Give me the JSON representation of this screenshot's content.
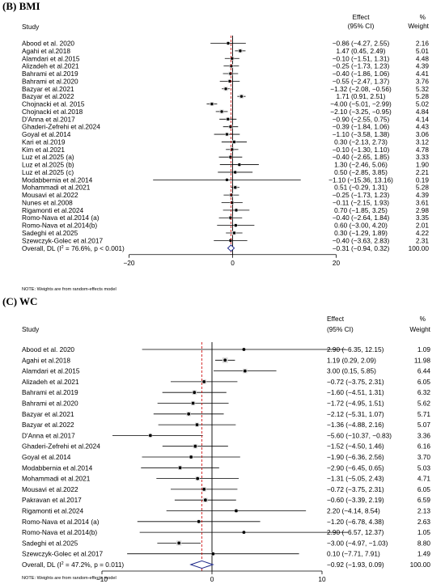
{
  "chart_data": [
    {
      "type": "forest",
      "panel_title": "(B) BMI",
      "header": {
        "study": "Study",
        "effect": "Effect",
        "ci": "(95% CI)",
        "pct": "%",
        "weight": "Weight"
      },
      "xticks": [
        -20,
        0,
        20
      ],
      "xlim": [
        -22,
        24
      ],
      "note": "NOTE: Weights are from random-effects model",
      "studies": [
        {
          "name": "Abood et al. 2020",
          "est": -0.86,
          "lo": -4.27,
          "hi": 2.55,
          "ci_text": "−0.86 (−4.27, 2.55)",
          "weight": "2.16"
        },
        {
          "name": "Agahi et al.2018",
          "est": 1.47,
          "lo": 0.45,
          "hi": 2.49,
          "ci_text": "1.47 (0.45, 2.49)",
          "weight": "5.01"
        },
        {
          "name": "Alamdari et al.2015",
          "est": -0.1,
          "lo": -1.51,
          "hi": 1.31,
          "ci_text": "−0.10 (−1.51, 1.31)",
          "weight": "4.48"
        },
        {
          "name": "Alizadeh et al.2021",
          "est": -0.25,
          "lo": -1.73,
          "hi": 1.23,
          "ci_text": "−0.25 (−1.73, 1.23)",
          "weight": "4.39"
        },
        {
          "name": "Bahrami et al.2019",
          "est": -0.4,
          "lo": -1.86,
          "hi": 1.06,
          "ci_text": "−0.40 (−1.86, 1.06)",
          "weight": "4.41"
        },
        {
          "name": "Bahrami et al.2020",
          "est": -0.55,
          "lo": -2.47,
          "hi": 1.37,
          "ci_text": "−0.55 (−2.47, 1.37)",
          "weight": "3.76"
        },
        {
          "name": "Bazyar et al.2021",
          "est": -1.32,
          "lo": -2.08,
          "hi": -0.56,
          "ci_text": "−1.32 (−2.08, −0.56)",
          "weight": "5.32"
        },
        {
          "name": "Bazyar et al.2022",
          "est": 1.71,
          "lo": 0.91,
          "hi": 2.51,
          "ci_text": "1.71 (0.91, 2.51)",
          "weight": "5.28"
        },
        {
          "name": "Chojnacki et al. 2015",
          "est": -4.0,
          "lo": -5.01,
          "hi": -2.99,
          "ci_text": "−4.00 (−5.01, −2.99)",
          "weight": "5.02"
        },
        {
          "name": "Chojnacki et al.2018",
          "est": -2.1,
          "lo": -3.25,
          "hi": -0.95,
          "ci_text": "−2.10 (−3.25, −0.95)",
          "weight": "4.84"
        },
        {
          "name": "D'Anna et al.2017",
          "est": -0.9,
          "lo": -2.55,
          "hi": 0.75,
          "ci_text": "−0.90 (−2.55, 0.75)",
          "weight": "4.14"
        },
        {
          "name": "Ghaderi-Zefrehi et al.2024",
          "est": -0.39,
          "lo": -1.84,
          "hi": 1.06,
          "ci_text": "−0.39 (−1.84, 1.06)",
          "weight": "4.43"
        },
        {
          "name": "Goyal  et al.2014",
          "est": -1.1,
          "lo": -3.58,
          "hi": 1.38,
          "ci_text": "−1.10 (−3.58, 1.38)",
          "weight": "3.06"
        },
        {
          "name": "Kari et al.2019",
          "est": 0.3,
          "lo": -2.13,
          "hi": 2.73,
          "ci_text": "0.30 (−2.13, 2.73)",
          "weight": "3.12"
        },
        {
          "name": "Kim et al.2021",
          "est": -0.1,
          "lo": -1.3,
          "hi": 1.1,
          "ci_text": "−0.10 (−1.30, 1.10)",
          "weight": "4.78"
        },
        {
          "name": "Luz et al.2025 (a)",
          "est": -0.4,
          "lo": -2.65,
          "hi": 1.85,
          "ci_text": "−0.40 (−2.65, 1.85)",
          "weight": "3.33"
        },
        {
          "name": "Luz et al.2025 (b)",
          "est": 1.3,
          "lo": -2.46,
          "hi": 5.06,
          "ci_text": "1.30 (−2.46, 5.06)",
          "weight": "1.90"
        },
        {
          "name": "Luz et al.2025 (c)",
          "est": 0.5,
          "lo": -2.85,
          "hi": 3.85,
          "ci_text": "0.50 (−2.85, 3.85)",
          "weight": "2.21"
        },
        {
          "name": "Modabbernia et al.2014",
          "est": -1.1,
          "lo": -15.36,
          "hi": 13.16,
          "ci_text": "−1.10 (−15.36, 13.16)",
          "weight": "0.19"
        },
        {
          "name": "Mohammadi et al.2021",
          "est": 0.51,
          "lo": -0.29,
          "hi": 1.31,
          "ci_text": "0.51 (−0.29, 1.31)",
          "weight": "5.28"
        },
        {
          "name": "Mousavi et al.2022",
          "est": -0.25,
          "lo": -1.73,
          "hi": 1.23,
          "ci_text": "−0.25 (−1.73, 1.23)",
          "weight": "4.39"
        },
        {
          "name": "Nunes et al.2008",
          "est": -0.11,
          "lo": -2.15,
          "hi": 1.93,
          "ci_text": "−0.11 (−2.15, 1.93)",
          "weight": "3.61"
        },
        {
          "name": "Rigamonti et al.2024",
          "est": 0.7,
          "lo": -1.85,
          "hi": 3.25,
          "ci_text": "0.70 (−1.85, 3.25)",
          "weight": "2.98"
        },
        {
          "name": "Romo-Nava et al.2014 (a)",
          "est": -0.4,
          "lo": -2.64,
          "hi": 1.84,
          "ci_text": "−0.40 (−2.64, 1.84)",
          "weight": "3.35"
        },
        {
          "name": "Romo-Nava et al.2014(b)",
          "est": 0.6,
          "lo": -3.0,
          "hi": 4.2,
          "ci_text": "0.60 (−3.00, 4.20)",
          "weight": "2.01"
        },
        {
          "name": "Sadeghi et al.2025",
          "est": 0.3,
          "lo": -1.29,
          "hi": 1.89,
          "ci_text": "0.30 (−1.29, 1.89)",
          "weight": "4.22"
        },
        {
          "name": "Szewczyk-Golec et al.2017",
          "est": -0.4,
          "lo": -3.63,
          "hi": 2.83,
          "ci_text": "−0.40 (−3.63, 2.83)",
          "weight": "2.31"
        }
      ],
      "overall": {
        "name_prefix": "Overall, DL (I",
        "name_sup": "2",
        "name_suffix": " = 76.6%, p < 0.001)",
        "est": -0.31,
        "lo": -0.94,
        "hi": 0.32,
        "ci_text": "−0.31 (−0.94, 0.32)",
        "weight": "100.00"
      }
    },
    {
      "type": "forest",
      "panel_title": "(C) WC",
      "header": {
        "study": "Study",
        "effect": "Effect",
        "ci": "(95% CI)",
        "pct": "%",
        "weight": "Weight"
      },
      "xticks": [
        -10,
        0,
        10
      ],
      "xlim": [
        -13,
        17
      ],
      "note": "NOTE: Weights are from random-effects model",
      "studies": [
        {
          "name": "Abood et al. 2020",
          "est": 2.9,
          "lo": -6.35,
          "hi": 12.15,
          "ci_text": "2.90 (−6.35, 12.15)",
          "weight": "1.09"
        },
        {
          "name": "Agahi et al.2018",
          "est": 1.19,
          "lo": 0.29,
          "hi": 2.09,
          "ci_text": "1.19 (0.29, 2.09)",
          "weight": "11.98"
        },
        {
          "name": "Alamdari et al.2015",
          "est": 3.0,
          "lo": 0.15,
          "hi": 5.85,
          "ci_text": "3.00 (0.15, 5.85)",
          "weight": "6.44"
        },
        {
          "name": "Alizadeh et al.2021",
          "est": -0.72,
          "lo": -3.75,
          "hi": 2.31,
          "ci_text": "−0.72 (−3.75, 2.31)",
          "weight": "6.05"
        },
        {
          "name": "Bahrami et al.2019",
          "est": -1.6,
          "lo": -4.51,
          "hi": 1.31,
          "ci_text": "−1.60 (−4.51, 1.31)",
          "weight": "6.32"
        },
        {
          "name": "Bahrami et al.2020",
          "est": -1.72,
          "lo": -4.95,
          "hi": 1.51,
          "ci_text": "−1.72 (−4.95, 1.51)",
          "weight": "5.62"
        },
        {
          "name": "Bazyar et al.2021",
          "est": -2.12,
          "lo": -5.31,
          "hi": 1.07,
          "ci_text": "−2.12 (−5.31, 1.07)",
          "weight": "5.71"
        },
        {
          "name": "Bazyar et al.2022",
          "est": -1.36,
          "lo": -4.88,
          "hi": 2.16,
          "ci_text": "−1.36 (−4.88, 2.16)",
          "weight": "5.07"
        },
        {
          "name": "D'Anna et al.2017",
          "est": -5.6,
          "lo": -10.37,
          "hi": -0.83,
          "ci_text": "−5.60 (−10.37, −0.83)",
          "weight": "3.36"
        },
        {
          "name": "Ghaderi-Zefrehi et al.2024",
          "est": -1.52,
          "lo": -4.5,
          "hi": 1.46,
          "ci_text": "−1.52 (−4.50, 1.46)",
          "weight": "6.16"
        },
        {
          "name": "Goyal  et al.2014",
          "est": -1.9,
          "lo": -6.36,
          "hi": 2.56,
          "ci_text": "−1.90 (−6.36, 2.56)",
          "weight": "3.70"
        },
        {
          "name": "Modabbernia et al.2014",
          "est": -2.9,
          "lo": -6.45,
          "hi": 0.65,
          "ci_text": "−2.90 (−6.45, 0.65)",
          "weight": "5.03"
        },
        {
          "name": "Mohammadi et al.2021",
          "est": -1.31,
          "lo": -5.05,
          "hi": 2.43,
          "ci_text": "−1.31 (−5.05, 2.43)",
          "weight": "4.71"
        },
        {
          "name": "Mousavi et al.2022",
          "est": -0.72,
          "lo": -3.75,
          "hi": 2.31,
          "ci_text": "−0.72 (−3.75, 2.31)",
          "weight": "6.05"
        },
        {
          "name": "Pakravan et al.2017",
          "est": -0.6,
          "lo": -3.39,
          "hi": 2.19,
          "ci_text": "−0.60 (−3.39, 2.19)",
          "weight": "6.59"
        },
        {
          "name": "Rigamonti et al.2024",
          "est": 2.2,
          "lo": -4.14,
          "hi": 8.54,
          "ci_text": "2.20 (−4.14, 8.54)",
          "weight": "2.13"
        },
        {
          "name": "Romo-Nava et al.2014 (a)",
          "est": -1.2,
          "lo": -6.78,
          "hi": 4.38,
          "ci_text": "−1.20 (−6.78, 4.38)",
          "weight": "2.63"
        },
        {
          "name": "Romo-Nava et al.2014(b)",
          "est": 2.9,
          "lo": -6.57,
          "hi": 12.37,
          "ci_text": "2.90 (−6.57, 12.37)",
          "weight": "1.05"
        },
        {
          "name": "Sadeghi et al.2025",
          "est": -3.0,
          "lo": -4.97,
          "hi": -1.03,
          "ci_text": "−3.00 (−4.97, −1.03)",
          "weight": "8.80"
        },
        {
          "name": "Szewczyk-Golec et al.2017",
          "est": 0.1,
          "lo": -7.71,
          "hi": 7.91,
          "ci_text": "0.10 (−7.71, 7.91)",
          "weight": "1.49"
        }
      ],
      "overall": {
        "name_prefix": "Overall, DL (I",
        "name_sup": "2",
        "name_suffix": " = 47.2%, p = 0.011)",
        "est": -0.92,
        "lo": -1.93,
        "hi": 0.09,
        "ci_text": "−0.92 (−1.93, 0.09)",
        "weight": "100.00"
      }
    }
  ]
}
